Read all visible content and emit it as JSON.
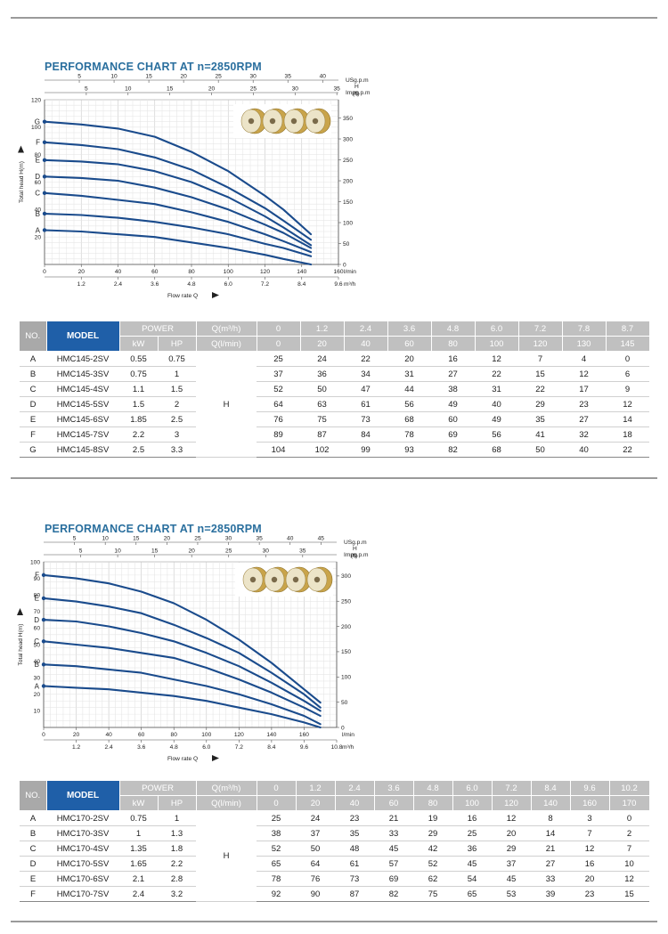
{
  "sections": [
    {
      "title": "PERFORMANCE CHART AT n=2850RPM",
      "table": {
        "no_label": "NO.",
        "model_label": "MODEL",
        "power_label": "POWER",
        "kw_label": "kW",
        "hp_label": "HP",
        "q_m3h_label": "Q(m³/h)",
        "q_lmin_label": "Q(l/min)",
        "h_label": "H",
        "q_m3h": [
          "0",
          "1.2",
          "2.4",
          "3.6",
          "4.8",
          "6.0",
          "7.2",
          "7.8",
          "8.7"
        ],
        "q_lmin": [
          "0",
          "20",
          "40",
          "60",
          "80",
          "100",
          "120",
          "130",
          "145"
        ],
        "rows": [
          {
            "no": "A",
            "model": "HMC145-2SV",
            "kw": "0.55",
            "hp": "0.75",
            "h": [
              "25",
              "24",
              "22",
              "20",
              "16",
              "12",
              "7",
              "4",
              "0"
            ]
          },
          {
            "no": "B",
            "model": "HMC145-3SV",
            "kw": "0.75",
            "hp": "1",
            "h": [
              "37",
              "36",
              "34",
              "31",
              "27",
              "22",
              "15",
              "12",
              "6"
            ]
          },
          {
            "no": "C",
            "model": "HMC145-4SV",
            "kw": "1.1",
            "hp": "1.5",
            "h": [
              "52",
              "50",
              "47",
              "44",
              "38",
              "31",
              "22",
              "17",
              "9"
            ]
          },
          {
            "no": "D",
            "model": "HMC145-5SV",
            "kw": "1.5",
            "hp": "2",
            "h": [
              "64",
              "63",
              "61",
              "56",
              "49",
              "40",
              "29",
              "23",
              "12"
            ]
          },
          {
            "no": "E",
            "model": "HMC145-6SV",
            "kw": "1.85",
            "hp": "2.5",
            "h": [
              "76",
              "75",
              "73",
              "68",
              "60",
              "49",
              "35",
              "27",
              "14"
            ]
          },
          {
            "no": "F",
            "model": "HMC145-7SV",
            "kw": "2.2",
            "hp": "3",
            "h": [
              "89",
              "87",
              "84",
              "78",
              "69",
              "56",
              "41",
              "32",
              "18"
            ]
          },
          {
            "no": "G",
            "model": "HMC145-8SV",
            "kw": "2.5",
            "hp": "3.3",
            "h": [
              "104",
              "102",
              "99",
              "93",
              "82",
              "68",
              "50",
              "40",
              "22"
            ]
          }
        ]
      }
    },
    {
      "title": "PERFORMANCE CHART AT n=2850RPM",
      "table": {
        "no_label": "NO.",
        "model_label": "MODEL",
        "power_label": "POWER",
        "kw_label": "kW",
        "hp_label": "HP",
        "q_m3h_label": "Q(m³/h)",
        "q_lmin_label": "Q(l/min)",
        "h_label": "H",
        "q_m3h": [
          "0",
          "1.2",
          "2.4",
          "3.6",
          "4.8",
          "6.0",
          "7.2",
          "8.4",
          "9.6",
          "10.2"
        ],
        "q_lmin": [
          "0",
          "20",
          "40",
          "60",
          "80",
          "100",
          "120",
          "140",
          "160",
          "170"
        ],
        "rows": [
          {
            "no": "A",
            "model": "HMC170-2SV",
            "kw": "0.75",
            "hp": "1",
            "h": [
              "25",
              "24",
              "23",
              "21",
              "19",
              "16",
              "12",
              "8",
              "3",
              "0"
            ]
          },
          {
            "no": "B",
            "model": "HMC170-3SV",
            "kw": "1",
            "hp": "1.3",
            "h": [
              "38",
              "37",
              "35",
              "33",
              "29",
              "25",
              "20",
              "14",
              "7",
              "2"
            ]
          },
          {
            "no": "C",
            "model": "HMC170-4SV",
            "kw": "1.35",
            "hp": "1.8",
            "h": [
              "52",
              "50",
              "48",
              "45",
              "42",
              "36",
              "29",
              "21",
              "12",
              "7"
            ]
          },
          {
            "no": "D",
            "model": "HMC170-5SV",
            "kw": "1.65",
            "hp": "2.2",
            "h": [
              "65",
              "64",
              "61",
              "57",
              "52",
              "45",
              "37",
              "27",
              "16",
              "10"
            ]
          },
          {
            "no": "E",
            "model": "HMC170-6SV",
            "kw": "2.1",
            "hp": "2.8",
            "h": [
              "78",
              "76",
              "73",
              "69",
              "62",
              "54",
              "45",
              "33",
              "20",
              "12"
            ]
          },
          {
            "no": "F",
            "model": "HMC170-7SV",
            "kw": "2.4",
            "hp": "3.2",
            "h": [
              "92",
              "90",
              "87",
              "82",
              "75",
              "65",
              "53",
              "39",
              "23",
              "15"
            ]
          }
        ]
      }
    }
  ],
  "chart_data": [
    {
      "type": "line",
      "title": "PERFORMANCE CHART AT n=2850RPM",
      "xlabel": "Flow rate Q",
      "ylabel": "Total head H(m)",
      "ylabel_right": "H (ft)",
      "x_unit": "l/min",
      "x_unit2": "m³/h",
      "top_unit1": "USg.p.m",
      "top_unit2": "Impg.p.m",
      "xlim": [
        0,
        160
      ],
      "ylim": [
        0,
        120
      ],
      "right_lim": [
        0,
        393.7
      ],
      "grid": true,
      "x_ticks": [
        "0",
        "20",
        "40",
        "60",
        "80",
        "100",
        "120",
        "140",
        "160"
      ],
      "x2_ticks": [
        "1.2",
        "2.4",
        "3.6",
        "4.8",
        "6.0",
        "7.2",
        "8.4",
        "9.6"
      ],
      "y_ticks": [
        "20",
        "40",
        "60",
        "80",
        "100",
        "120"
      ],
      "right_ticks": [
        "0",
        "50",
        "100",
        "150",
        "200",
        "250",
        "300",
        "350"
      ],
      "top1_ticks": [
        "5",
        "10",
        "15",
        "20",
        "25",
        "30",
        "35",
        "40"
      ],
      "top2_ticks": [
        "5",
        "10",
        "15",
        "20",
        "25",
        "30",
        "35"
      ],
      "x": [
        0,
        20,
        40,
        60,
        80,
        100,
        120,
        130,
        145
      ],
      "series": [
        {
          "name": "A",
          "values": [
            25,
            24,
            22,
            20,
            16,
            12,
            7,
            4,
            0
          ]
        },
        {
          "name": "B",
          "values": [
            37,
            36,
            34,
            31,
            27,
            22,
            15,
            12,
            6
          ]
        },
        {
          "name": "C",
          "values": [
            52,
            50,
            47,
            44,
            38,
            31,
            22,
            17,
            9
          ]
        },
        {
          "name": "D",
          "values": [
            64,
            63,
            61,
            56,
            49,
            40,
            29,
            23,
            12
          ]
        },
        {
          "name": "E",
          "values": [
            76,
            75,
            73,
            68,
            60,
            49,
            35,
            27,
            14
          ]
        },
        {
          "name": "F",
          "values": [
            89,
            87,
            84,
            78,
            69,
            56,
            41,
            32,
            18
          ]
        },
        {
          "name": "G",
          "values": [
            104,
            102,
            99,
            93,
            82,
            68,
            50,
            40,
            22
          ]
        }
      ],
      "line_color": "#1a4b8c"
    },
    {
      "type": "line",
      "title": "PERFORMANCE CHART AT n=2850RPM",
      "xlabel": "Flow rate Q",
      "ylabel": "Total head H(m)",
      "ylabel_right": "H (ft)",
      "x_unit": "l/min",
      "x_unit2": "m³/h",
      "top_unit1": "USg.p.m",
      "top_unit2": "Impg.p.m",
      "xlim": [
        0,
        180
      ],
      "ylim": [
        0,
        100
      ],
      "right_lim": [
        0,
        328
      ],
      "grid": true,
      "x_ticks": [
        "0",
        "20",
        "40",
        "60",
        "80",
        "100",
        "120",
        "140",
        "160"
      ],
      "x2_ticks": [
        "1.2",
        "2.4",
        "3.6",
        "4.8",
        "6.0",
        "7.2",
        "8.4",
        "9.6",
        "10.8"
      ],
      "y_ticks": [
        "10",
        "20",
        "30",
        "40",
        "50",
        "60",
        "70",
        "80",
        "90",
        "100"
      ],
      "right_ticks": [
        "0",
        "50",
        "100",
        "150",
        "200",
        "250",
        "300"
      ],
      "top1_ticks": [
        "5",
        "10",
        "15",
        "20",
        "25",
        "30",
        "35",
        "40",
        "45"
      ],
      "top2_ticks": [
        "5",
        "10",
        "15",
        "20",
        "25",
        "30",
        "35"
      ],
      "x": [
        0,
        20,
        40,
        60,
        80,
        100,
        120,
        140,
        160,
        170
      ],
      "series": [
        {
          "name": "A",
          "values": [
            25,
            24,
            23,
            21,
            19,
            16,
            12,
            8,
            3,
            0
          ]
        },
        {
          "name": "B",
          "values": [
            38,
            37,
            35,
            33,
            29,
            25,
            20,
            14,
            7,
            2
          ]
        },
        {
          "name": "C",
          "values": [
            52,
            50,
            48,
            45,
            42,
            36,
            29,
            21,
            12,
            7
          ]
        },
        {
          "name": "D",
          "values": [
            65,
            64,
            61,
            57,
            52,
            45,
            37,
            27,
            16,
            10
          ]
        },
        {
          "name": "E",
          "values": [
            78,
            76,
            73,
            69,
            62,
            54,
            45,
            33,
            20,
            12
          ]
        },
        {
          "name": "F",
          "values": [
            92,
            90,
            87,
            82,
            75,
            65,
            53,
            39,
            23,
            15
          ]
        }
      ],
      "line_color": "#1a4b8c"
    }
  ]
}
